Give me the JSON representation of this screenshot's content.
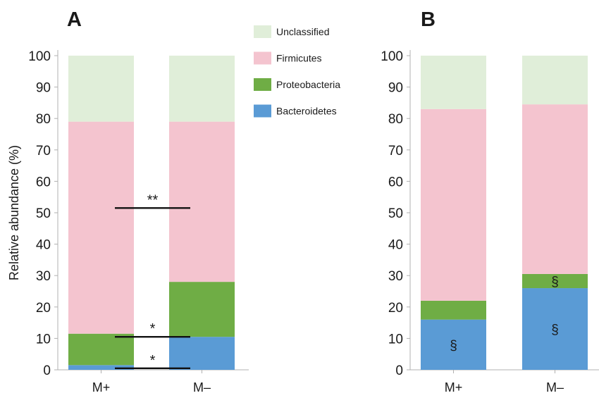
{
  "colors": {
    "Unclassified": "#e0eed9",
    "Firmicutes": "#f4c4cf",
    "Proteobacteria": "#6fad45",
    "Bacteroidetes": "#5a9bd5",
    "axis": "#b0b0b0",
    "text": "#1a1a1a"
  },
  "legend": {
    "items": [
      "Unclassified",
      "Firmicutes",
      "Proteobacteria",
      "Bacteroidetes"
    ]
  },
  "chart_data": [
    {
      "panel": "A",
      "type": "bar",
      "stacked": true,
      "categories": [
        "M+",
        "M–"
      ],
      "ylabel": "Relative abundance (%)",
      "ylim": [
        0,
        100
      ],
      "yticks": [
        0,
        10,
        20,
        30,
        40,
        50,
        60,
        70,
        80,
        90,
        100
      ],
      "series": [
        {
          "name": "Bacteroidetes",
          "values": [
            1.5,
            10.5
          ]
        },
        {
          "name": "Proteobacteria",
          "values": [
            10.0,
            17.5
          ]
        },
        {
          "name": "Firmicutes",
          "values": [
            67.5,
            51.0
          ]
        },
        {
          "name": "Unclassified",
          "values": [
            21.0,
            21.0
          ]
        }
      ],
      "significance": [
        {
          "y": 51.5,
          "label": "**"
        },
        {
          "y": 10.5,
          "label": "*"
        },
        {
          "y": 0.5,
          "label": "*"
        }
      ],
      "annotations": []
    },
    {
      "panel": "B",
      "type": "bar",
      "stacked": true,
      "categories": [
        "M+",
        "M–"
      ],
      "ylabel": "",
      "ylim": [
        0,
        100
      ],
      "yticks": [
        0,
        10,
        20,
        30,
        40,
        50,
        60,
        70,
        80,
        90,
        100
      ],
      "series": [
        {
          "name": "Bacteroidetes",
          "values": [
            16.0,
            26.0
          ]
        },
        {
          "name": "Proteobacteria",
          "values": [
            6.0,
            4.5
          ]
        },
        {
          "name": "Firmicutes",
          "values": [
            61.0,
            54.0
          ]
        },
        {
          "name": "Unclassified",
          "values": [
            17.0,
            15.5
          ]
        }
      ],
      "significance": [],
      "annotations": [
        {
          "category": 0,
          "series": "Bacteroidetes",
          "label": "§"
        },
        {
          "category": 1,
          "series": "Bacteroidetes",
          "label": "§"
        },
        {
          "category": 1,
          "series": "Proteobacteria",
          "label": "§"
        }
      ]
    }
  ]
}
